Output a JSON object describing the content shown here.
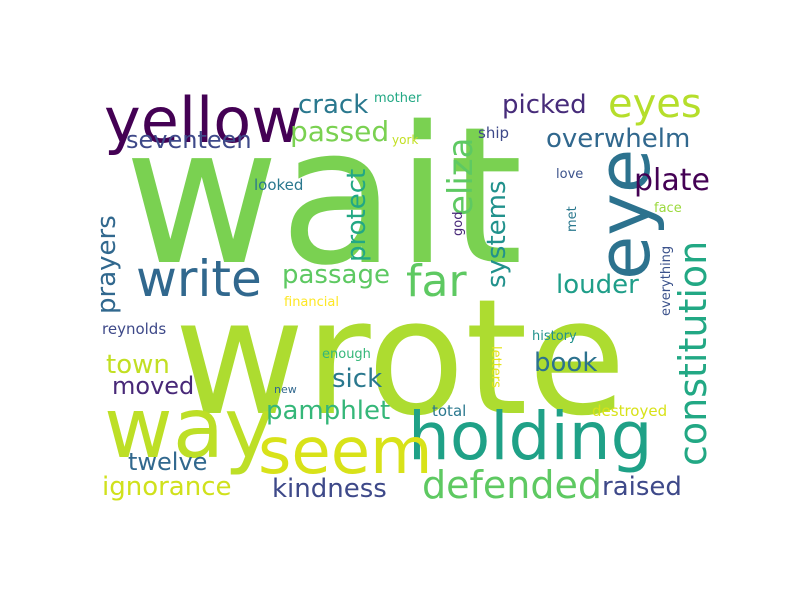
{
  "words": {
    "wait": {
      "text": "wait",
      "color": "#7ad151"
    },
    "wrote": {
      "text": "wrote",
      "color": "#addc30"
    },
    "eye": {
      "text": "eye",
      "color": "#2c728e"
    },
    "way": {
      "text": "way",
      "color": "#bddf26"
    },
    "holding": {
      "text": "holding",
      "color": "#1fa187"
    },
    "seem": {
      "text": "seem",
      "color": "#d8e219"
    },
    "yellow": {
      "text": "yellow",
      "color": "#440154"
    },
    "write": {
      "text": "write",
      "color": "#31688e"
    },
    "far": {
      "text": "far",
      "color": "#5ec962"
    },
    "defended": {
      "text": "defended",
      "color": "#5ec962"
    },
    "constitution": {
      "text": "constitution",
      "color": "#22a884"
    },
    "eliza": {
      "text": "eliza",
      "color": "#5ec962"
    },
    "eyes": {
      "text": "eyes",
      "color": "#b5de2b"
    },
    "passed": {
      "text": "passed",
      "color": "#7ad151"
    },
    "plate": {
      "text": "plate",
      "color": "#440154"
    },
    "picked": {
      "text": "picked",
      "color": "#472c7a"
    },
    "overwhelm": {
      "text": "overwhelm",
      "color": "#31688e"
    },
    "crack": {
      "text": "crack",
      "color": "#2a788e"
    },
    "seventeen": {
      "text": "seventeen",
      "color": "#3e4989"
    },
    "passage": {
      "text": "passage",
      "color": "#5ec962"
    },
    "prayers": {
      "text": "prayers",
      "color": "#31688e"
    },
    "protect": {
      "text": "protect",
      "color": "#22a884"
    },
    "systems": {
      "text": "systems",
      "color": "#21918c"
    },
    "louder": {
      "text": "louder",
      "color": "#1f9e89"
    },
    "town": {
      "text": "town",
      "color": "#c2df23"
    },
    "moved": {
      "text": "moved",
      "color": "#482878"
    },
    "sick": {
      "text": "sick",
      "color": "#2a788e"
    },
    "book": {
      "text": "book",
      "color": "#2c728e"
    },
    "pamphlet": {
      "text": "pamphlet",
      "color": "#35b779"
    },
    "kindness": {
      "text": "kindness",
      "color": "#3e4989"
    },
    "twelve": {
      "text": "twelve",
      "color": "#31688e"
    },
    "ignorance": {
      "text": "ignorance",
      "color": "#d0e11c"
    },
    "raised": {
      "text": "raised",
      "color": "#3e4989"
    },
    "reynolds": {
      "text": "reynolds",
      "color": "#3e4989"
    },
    "mother": {
      "text": "mother",
      "color": "#22a884"
    },
    "york": {
      "text": "york",
      "color": "#c2df23"
    },
    "ship": {
      "text": "ship",
      "color": "#3e4989"
    },
    "looked": {
      "text": "looked",
      "color": "#2a788e"
    },
    "love": {
      "text": "love",
      "color": "#3b528b"
    },
    "face": {
      "text": "face",
      "color": "#9bd93c"
    },
    "god": {
      "text": "god",
      "color": "#482878"
    },
    "met": {
      "text": "met",
      "color": "#2a788e"
    },
    "everything": {
      "text": "everything",
      "color": "#3b528b"
    },
    "financial": {
      "text": "financial",
      "color": "#fde725"
    },
    "enough": {
      "text": "enough",
      "color": "#35b779"
    },
    "history": {
      "text": "history",
      "color": "#21918c"
    },
    "letters": {
      "text": "letters",
      "color": "#e5e419"
    },
    "new": {
      "text": "new",
      "color": "#31688e"
    },
    "total": {
      "text": "total",
      "color": "#2a788e"
    },
    "destroyed": {
      "text": "destroyed",
      "color": "#d8e219"
    }
  }
}
